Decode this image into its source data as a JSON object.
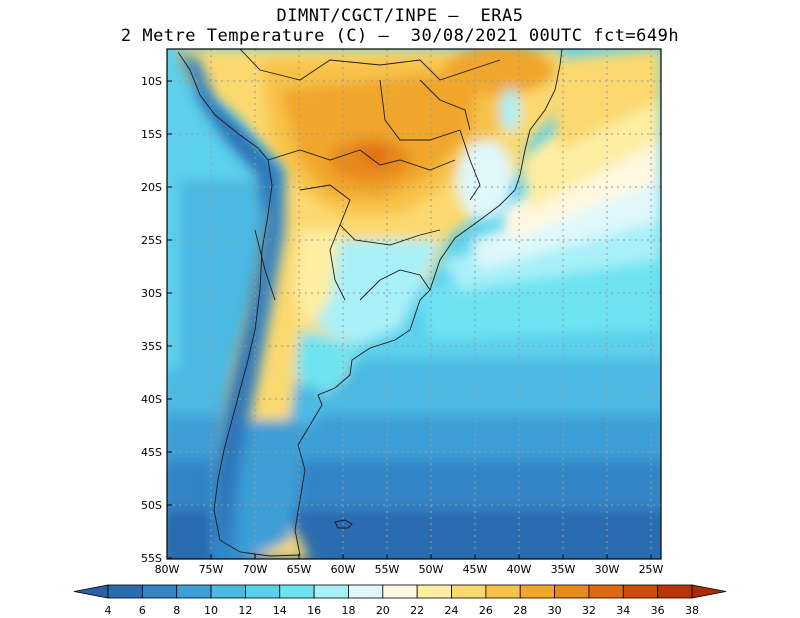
{
  "title": {
    "line1": "DIMNT/CGCT/INPE —  ERA5",
    "line2": "2 Metre Temperature (C) —  30/08/2021 00UTC fct=649h"
  },
  "map": {
    "lat_labels": [
      "10S",
      "15S",
      "20S",
      "25S",
      "30S",
      "35S",
      "40S",
      "45S",
      "50S",
      "55S"
    ],
    "lon_labels": [
      "80W",
      "75W",
      "70W",
      "65W",
      "60W",
      "55W",
      "50W",
      "45W",
      "40W",
      "35W",
      "30W",
      "25W"
    ],
    "lat_range": [
      -55,
      -7
    ],
    "lon_range": [
      -80,
      -25
    ]
  },
  "colorbar": {
    "labels": [
      "4",
      "6",
      "8",
      "10",
      "12",
      "14",
      "16",
      "18",
      "20",
      "22",
      "24",
      "26",
      "28",
      "30",
      "32",
      "34",
      "36",
      "38"
    ],
    "colors": [
      "#2b6cb0",
      "#3385c6",
      "#3d9fd6",
      "#4cb9e3",
      "#5bd0ec",
      "#6de3f2",
      "#a8f0f8",
      "#dff8fb",
      "#fff8e0",
      "#fdeea2",
      "#fcd970",
      "#f8c24a",
      "#f0a62a",
      "#e8891c",
      "#de6a12",
      "#cf4c0c",
      "#b8360a"
    ],
    "low_color": "#2a5fa8",
    "high_color": "#a82c08"
  }
}
